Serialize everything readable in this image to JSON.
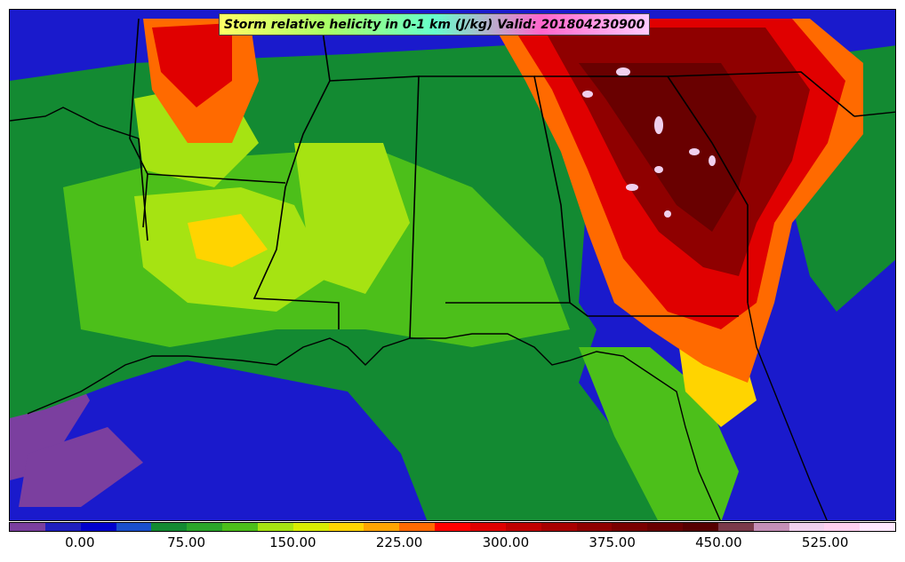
{
  "title": "Storm relative helicity in 0-1 km (J/kg) Valid: 201804230900",
  "variable": "Storm relative helicity in 0-1 km",
  "units": "J/kg",
  "valid_time": "201804230900",
  "colorbar": {
    "colors": [
      "#7b3f9f",
      "#1f1fbf",
      "#0000cc",
      "#1a4fcc",
      "#138a32",
      "#2aa52a",
      "#4cbf1a",
      "#a6e312",
      "#d9ec00",
      "#ffd400",
      "#ffa500",
      "#ff6a00",
      "#ff0000",
      "#e00000",
      "#c00000",
      "#a80000",
      "#8f0000",
      "#7a0000",
      "#690000",
      "#560000",
      "#7a3a4a",
      "#c58fb8",
      "#f0d0ee",
      "#ffd0f0",
      "#ffe8ff"
    ],
    "tick_labels": [
      "0.00",
      "75.00",
      "150.00",
      "225.00",
      "300.00",
      "375.00",
      "450.00",
      "525.00"
    ],
    "tick_fractions": [
      0.08,
      0.2,
      0.32,
      0.44,
      0.56,
      0.68,
      0.8,
      0.92
    ]
  },
  "map_features": [
    "state-borders",
    "coastlines"
  ]
}
